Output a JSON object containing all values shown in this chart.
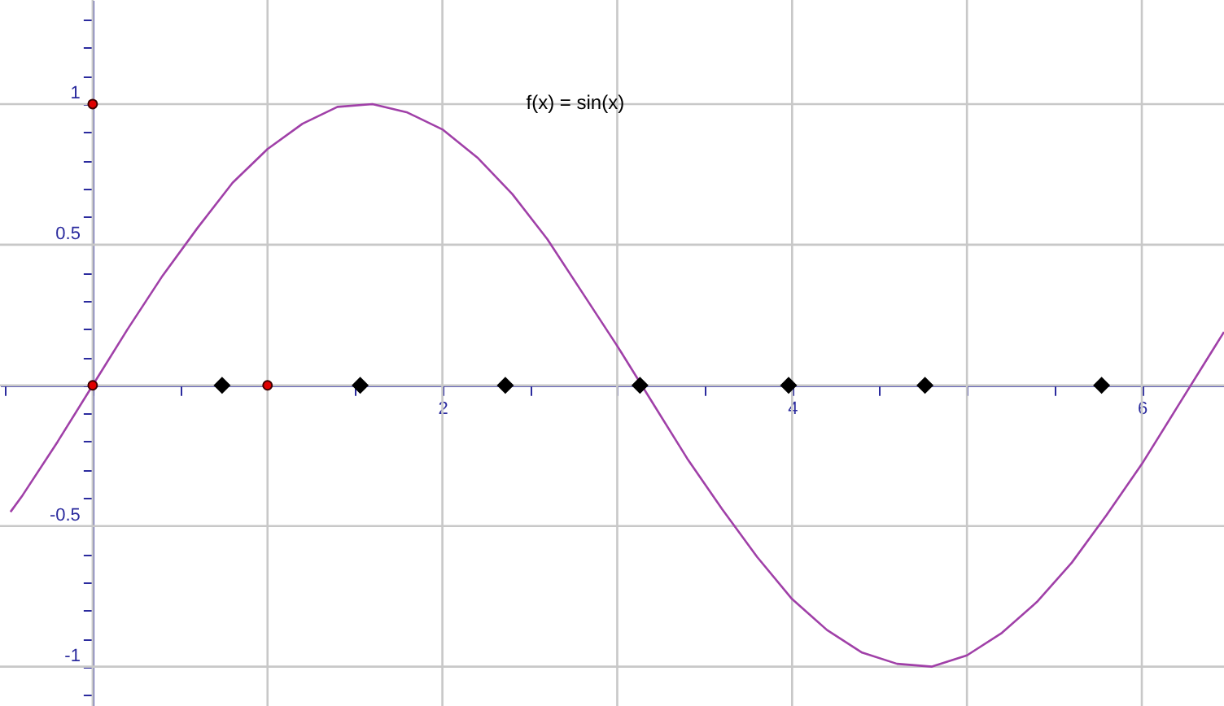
{
  "chart_data": {
    "type": "line",
    "annotations": [
      "f(x) = sin(x)"
    ],
    "xlim": [
      -0.53,
      6.47
    ],
    "ylim": [
      -1.14,
      1.37
    ],
    "xticks": [
      {
        "value": -0.5,
        "label": null
      },
      {
        "value": 0,
        "label": null
      },
      {
        "value": 0.5,
        "label": null
      },
      {
        "value": 1,
        "label": null
      },
      {
        "value": 1.5,
        "label": null
      },
      2,
      {
        "value": 2.5,
        "label": null
      },
      {
        "value": 3,
        "label": null
      },
      {
        "value": 3.5,
        "label": null
      },
      4,
      {
        "value": 4.5,
        "label": null
      },
      {
        "value": 5,
        "label": null
      },
      {
        "value": 5.5,
        "label": null
      },
      6
    ],
    "yticks": [
      {
        "value": -1.1,
        "label": null
      },
      -1,
      {
        "value": -0.9,
        "label": null
      },
      {
        "value": -0.8,
        "label": null
      },
      {
        "value": -0.7,
        "label": null
      },
      {
        "value": -0.6,
        "label": null
      },
      -0.5,
      {
        "value": -0.4,
        "label": null
      },
      {
        "value": -0.3,
        "label": null
      },
      {
        "value": -0.2,
        "label": null
      },
      {
        "value": -0.1,
        "label": null
      },
      {
        "value": 0,
        "label": null
      },
      {
        "value": 0.1,
        "label": null
      },
      {
        "value": 0.2,
        "label": null
      },
      {
        "value": 0.3,
        "label": null
      },
      {
        "value": 0.4,
        "label": null
      },
      0.5,
      {
        "value": 0.6,
        "label": null
      },
      {
        "value": 0.7,
        "label": null
      },
      {
        "value": 0.8,
        "label": null
      },
      {
        "value": 0.9,
        "label": null
      },
      1,
      {
        "value": 1.1,
        "label": null
      },
      {
        "value": 1.2,
        "label": null
      },
      {
        "value": 1.3,
        "label": null
      }
    ],
    "grid": true,
    "series": [
      {
        "type": "line",
        "color": "#a040a8",
        "marker": "none",
        "line_style": "solid",
        "x": [
          -0.47,
          -0.4,
          -0.2,
          0,
          0.2,
          0.4,
          0.6,
          0.8,
          1.0,
          1.2,
          1.4,
          1.6,
          1.8,
          2.0,
          2.2,
          2.4,
          2.6,
          2.8,
          3.0,
          3.2,
          3.4,
          3.6,
          3.8,
          4.0,
          4.2,
          4.4,
          4.6,
          4.8,
          5.0,
          5.2,
          5.4,
          5.6,
          5.8,
          6.0,
          6.2,
          6.4,
          6.47
        ],
        "values": [
          -0.45,
          -0.39,
          -0.2,
          0,
          0.2,
          0.39,
          0.56,
          0.72,
          0.84,
          0.93,
          0.99,
          1.0,
          0.97,
          0.91,
          0.81,
          0.68,
          0.52,
          0.33,
          0.14,
          -0.06,
          -0.26,
          -0.44,
          -0.61,
          -0.76,
          -0.87,
          -0.95,
          -0.99,
          -1.0,
          -0.96,
          -0.88,
          -0.77,
          -0.63,
          -0.46,
          -0.28,
          -0.08,
          0.12,
          0.19
        ]
      },
      {
        "type": "scatter",
        "color": "#e00000",
        "marker": "circle",
        "x": [
          0,
          0,
          1
        ],
        "values": [
          1,
          0,
          0
        ]
      },
      {
        "type": "scatter",
        "color": "#000000",
        "marker": "diamond",
        "x": [
          0.74,
          1.53,
          2.36,
          3.13,
          3.98,
          4.76,
          5.77
        ],
        "values": [
          0,
          0,
          0,
          0,
          0,
          0,
          0
        ]
      }
    ]
  }
}
